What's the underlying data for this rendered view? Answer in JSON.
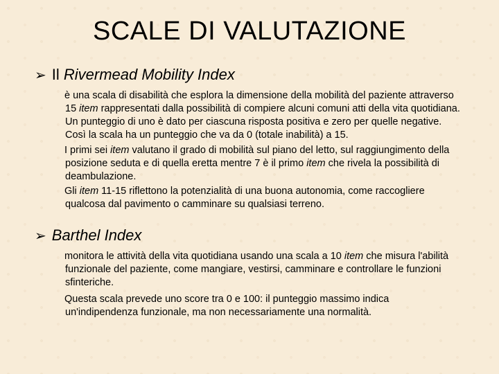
{
  "title": "SCALE DI VALUTAZIONE",
  "background_color": "#f8ecd8",
  "text_color": "#000000",
  "title_fontsize": 38,
  "heading_fontsize": 22,
  "body_fontsize": 14.5,
  "font_family": "Arial",
  "sections": [
    {
      "bullet": "➢",
      "heading_prefix": "Il ",
      "heading_italic": "Rivermead Mobility Index",
      "paragraphs": [
        " è una scala di disabilità che esplora la dimensione della mobilità del paziente attraverso 15 <em>item</em> rappresentati dalla possibilità di compiere alcuni comuni atti della vita quotidiana. Un punteggio di uno è dato per ciascuna risposta positiva e zero per quelle negative. Così la scala ha un punteggio che va da 0 (totale inabilità) a 15.",
        "I primi sei <em>item</em> valutano il grado di mobilità sul piano del letto, sul raggiungimento della posizione seduta e di quella eretta mentre 7 è il primo <em>item</em> che rivela la possibilità di deambulazione.",
        "Gli <em>item</em> 11-15 riflettono la potenzialità di una buona autonomia, come raccogliere qualcosa dal pavimento o camminare su qualsiasi terreno."
      ]
    },
    {
      "bullet": "➢",
      "heading_prefix": "",
      "heading_italic": "Barthel Index",
      "paragraphs": [
        "monitora le attività della vita quotidiana usando una scala a 10 <em>item</em> che misura l'abilità funzionale del paziente, come mangiare, vestirsi, camminare e controllare le funzioni sfinteriche.",
        " Questa scala prevede uno score tra 0 e 100: il punteggio massimo indica un'indipendenza funzionale, ma non necessariamente una normalità."
      ]
    }
  ]
}
